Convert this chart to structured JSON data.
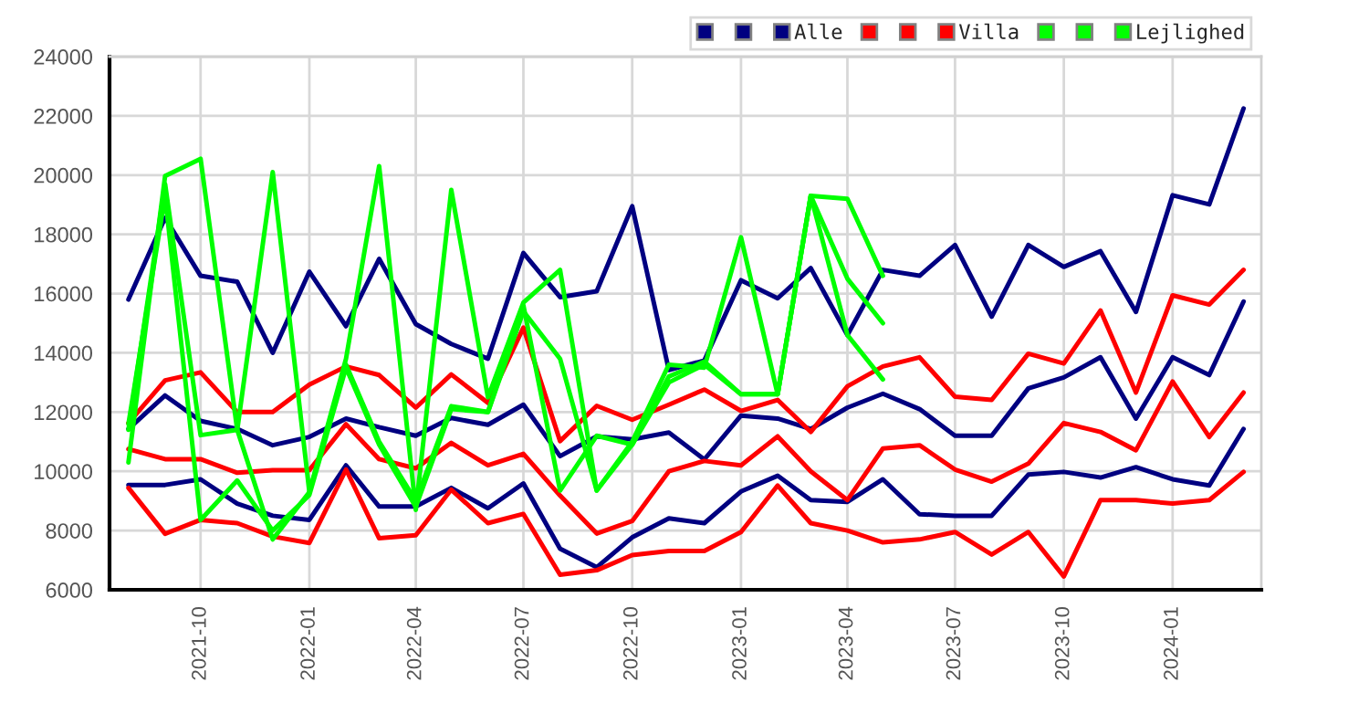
{
  "chart_data": {
    "type": "line",
    "x": [
      "2021-08",
      "2021-09",
      "2021-10",
      "2021-11",
      "2021-12",
      "2022-01",
      "2022-02",
      "2022-03",
      "2022-04",
      "2022-05",
      "2022-06",
      "2022-07",
      "2022-08",
      "2022-09",
      "2022-10",
      "2022-11",
      "2022-12",
      "2023-01",
      "2023-02",
      "2023-03",
      "2023-04",
      "2023-05",
      "2023-06",
      "2023-07",
      "2023-08",
      "2023-09",
      "2023-10",
      "2023-11",
      "2023-12",
      "2024-01",
      "2024-02",
      "2024-03"
    ],
    "series": [
      {
        "color": "#000080",
        "values": [
          15800,
          18560,
          16600,
          16400,
          14000,
          16740,
          14900,
          17170,
          14970,
          14300,
          13800,
          17370,
          15880,
          16080,
          18950,
          13420,
          13740,
          16450,
          15840,
          16860,
          14600,
          16800,
          16600,
          17640,
          15220,
          17640,
          16900,
          17430,
          15380,
          19320,
          19010,
          22250
        ]
      },
      {
        "color": "#000080",
        "values": [
          11430,
          12560,
          11700,
          11430,
          10880,
          11160,
          11780,
          11490,
          11200,
          11800,
          11570,
          12250,
          10510,
          11180,
          11080,
          11310,
          10400,
          11880,
          11780,
          11430,
          12150,
          12620,
          12100,
          11200,
          11200,
          12800,
          13170,
          13850,
          11780,
          13850,
          13250,
          15730
        ]
      },
      {
        "name": "Alle",
        "color": "#000080",
        "values": [
          9540,
          9540,
          9730,
          8910,
          8500,
          8360,
          10200,
          8810,
          8810,
          9440,
          8750,
          9590,
          7390,
          6760,
          7770,
          8410,
          8250,
          9320,
          9850,
          9030,
          8970,
          9730,
          8550,
          8500,
          8500,
          9890,
          9980,
          9790,
          10140,
          9730,
          9520,
          11430
        ]
      },
      {
        "color": "#ff0000",
        "values": [
          11630,
          13070,
          13340,
          12000,
          12000,
          12930,
          13540,
          13250,
          12150,
          13270,
          12310,
          14850,
          11020,
          12210,
          11740,
          12250,
          12760,
          12040,
          12410,
          11330,
          12870,
          13540,
          13850,
          12520,
          12410,
          13970,
          13640,
          15430,
          12660,
          15940,
          15630,
          16800
        ]
      },
      {
        "color": "#ff0000",
        "values": [
          10750,
          10410,
          10410,
          9950,
          10040,
          10040,
          11590,
          10410,
          10100,
          10960,
          10200,
          10590,
          9180,
          7900,
          8320,
          10000,
          10350,
          10200,
          11180,
          10000,
          9030,
          10770,
          10880,
          10060,
          9650,
          10260,
          11630,
          11330,
          10710,
          13030,
          11160,
          12660
        ]
      },
      {
        "name": "Villa",
        "color": "#ff0000",
        "values": [
          9440,
          7890,
          8360,
          8250,
          7800,
          7580,
          10060,
          7740,
          7840,
          9380,
          8250,
          8560,
          6510,
          6660,
          7170,
          7310,
          7310,
          7950,
          9520,
          8250,
          8000,
          7600,
          7700,
          7950,
          7190,
          7950,
          6450,
          9030,
          9030,
          8910,
          9030,
          9980
        ]
      },
      {
        "color": "#00ff00",
        "values": [
          10300,
          19970,
          20550,
          11400,
          20100,
          9300,
          13800,
          20300,
          8700,
          19500,
          12500,
          15700,
          16800,
          9350,
          11000,
          13600,
          13500,
          17900,
          12600,
          19300,
          19200,
          16600,
          null,
          null,
          null,
          null,
          null,
          null,
          null,
          null,
          null,
          null
        ]
      },
      {
        "color": "#00ff00",
        "values": [
          11400,
          19700,
          11220,
          11400,
          7700,
          9300,
          13600,
          11000,
          9000,
          12200,
          12000,
          15600,
          9350,
          11200,
          10900,
          13200,
          13700,
          12600,
          12600,
          19300,
          16500,
          15000,
          null,
          null,
          null,
          null,
          null,
          null,
          null,
          null,
          null,
          null
        ]
      },
      {
        "name": "Lejlighed",
        "color": "#00ff00",
        "values": [
          11600,
          19300,
          8360,
          9690,
          8000,
          9200,
          13500,
          10900,
          8800,
          12100,
          12000,
          15400,
          13800,
          9350,
          10900,
          13000,
          13600,
          12600,
          12600,
          19300,
          14600,
          13100,
          null,
          null,
          null,
          null,
          null,
          null,
          null,
          null,
          null,
          null
        ]
      }
    ],
    "xlim": [
      "2021-07-16",
      "2024-03-16"
    ],
    "xticks": [
      {
        "value": "2021-10",
        "label": "2021-10"
      },
      {
        "value": "2022-01",
        "label": "2022-01"
      },
      {
        "value": "2022-04",
        "label": "2022-04"
      },
      {
        "value": "2022-07",
        "label": "2022-07"
      },
      {
        "value": "2022-10",
        "label": "2022-10"
      },
      {
        "value": "2023-01",
        "label": "2023-01"
      },
      {
        "value": "2023-04",
        "label": "2023-04"
      },
      {
        "value": "2023-07",
        "label": "2023-07"
      },
      {
        "value": "2023-10",
        "label": "2023-10"
      },
      {
        "value": "2024-01",
        "label": "2024-01"
      }
    ],
    "ylim": [
      6000,
      24000
    ],
    "yticks": [
      6000,
      8000,
      10000,
      12000,
      14000,
      16000,
      18000,
      20000,
      22000,
      24000
    ],
    "grid": true,
    "legend": "top right",
    "marker": "none",
    "line_style": "solid"
  }
}
